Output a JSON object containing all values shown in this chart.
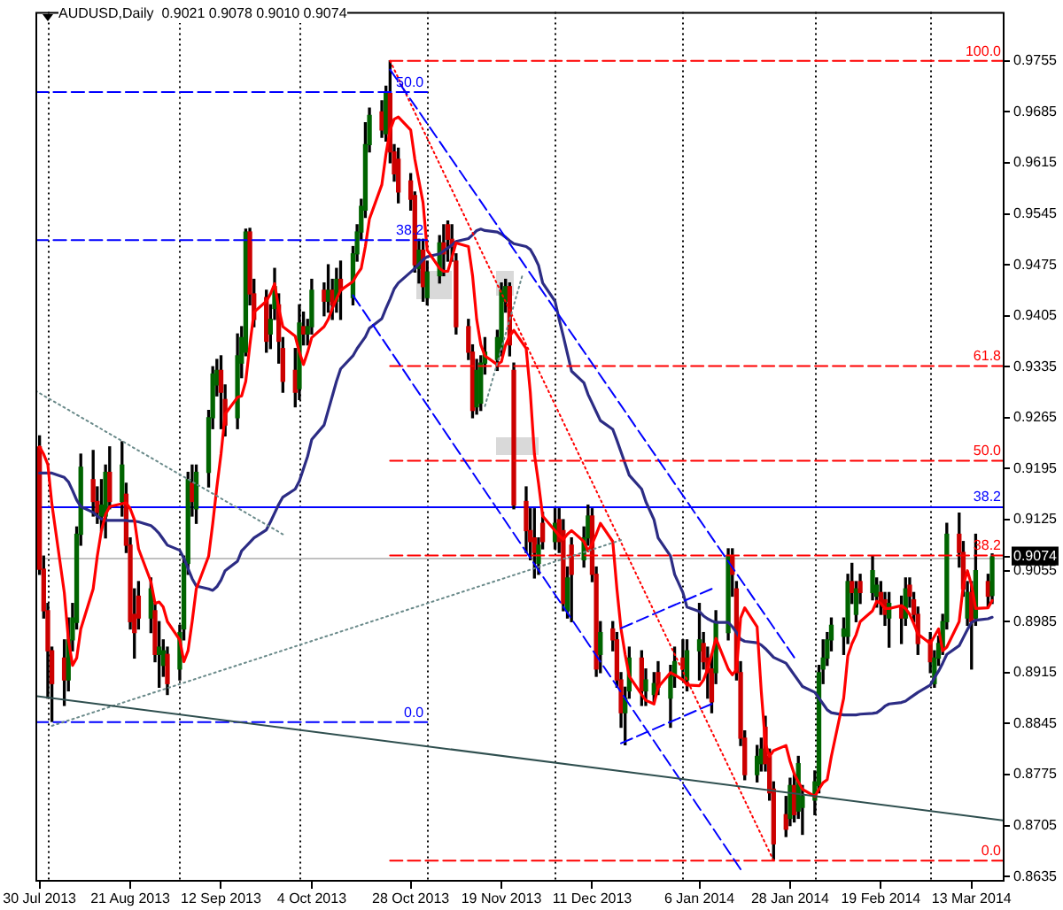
{
  "chart_data": {
    "type": "candlestick",
    "title": "AUDUSD,Daily  0.9021 0.9078 0.9010 0.9074",
    "x": [
      "2013-07-30",
      "2013-07-31",
      "2013-08-01",
      "2013-08-02",
      "2013-08-05",
      "2013-08-06",
      "2013-08-07",
      "2013-08-08",
      "2013-08-09",
      "2013-08-12",
      "2013-08-13",
      "2013-08-14",
      "2013-08-15",
      "2013-08-16",
      "2013-08-19",
      "2013-08-20",
      "2013-08-21",
      "2013-08-22",
      "2013-08-23",
      "2013-08-26",
      "2013-08-27",
      "2013-08-28",
      "2013-08-29",
      "2013-08-30",
      "2013-09-02",
      "2013-09-03",
      "2013-09-04",
      "2013-09-05",
      "2013-09-06",
      "2013-09-09",
      "2013-09-10",
      "2013-09-11",
      "2013-09-12",
      "2013-09-13",
      "2013-09-16",
      "2013-09-17",
      "2013-09-18",
      "2013-09-19",
      "2013-09-20",
      "2013-09-23",
      "2013-09-24",
      "2013-09-25",
      "2013-09-26",
      "2013-09-27",
      "2013-09-30",
      "2013-10-01",
      "2013-10-02",
      "2013-10-03",
      "2013-10-04",
      "2013-10-07",
      "2013-10-08",
      "2013-10-09",
      "2013-10-10",
      "2013-10-11",
      "2013-10-14",
      "2013-10-15",
      "2013-10-16",
      "2013-10-17",
      "2013-10-18",
      "2013-10-21",
      "2013-10-22",
      "2013-10-23",
      "2013-10-24",
      "2013-10-25",
      "2013-10-28",
      "2013-10-29",
      "2013-10-30",
      "2013-10-31",
      "2013-11-01",
      "2013-11-04",
      "2013-11-05",
      "2013-11-06",
      "2013-11-07",
      "2013-11-08",
      "2013-11-11",
      "2013-11-12",
      "2013-11-13",
      "2013-11-14",
      "2013-11-15",
      "2013-11-18",
      "2013-11-19",
      "2013-11-20",
      "2013-11-21",
      "2013-11-22",
      "2013-11-25",
      "2013-11-26",
      "2013-11-27",
      "2013-11-28",
      "2013-11-29",
      "2013-12-02",
      "2013-12-03",
      "2013-12-04",
      "2013-12-05",
      "2013-12-06",
      "2013-12-09",
      "2013-12-10",
      "2013-12-11",
      "2013-12-12",
      "2013-12-13",
      "2013-12-16",
      "2013-12-17",
      "2013-12-18",
      "2013-12-19",
      "2013-12-20",
      "2013-12-23",
      "2013-12-24",
      "2013-12-26",
      "2013-12-27",
      "2013-12-30",
      "2013-12-31",
      "2014-01-02",
      "2014-01-03",
      "2014-01-06",
      "2014-01-07",
      "2014-01-08",
      "2014-01-09",
      "2014-01-10",
      "2014-01-13",
      "2014-01-14",
      "2014-01-15",
      "2014-01-16",
      "2014-01-17",
      "2014-01-20",
      "2014-01-21",
      "2014-01-22",
      "2014-01-23",
      "2014-01-24",
      "2014-01-27",
      "2014-01-28",
      "2014-01-29",
      "2014-01-30",
      "2014-01-31",
      "2014-02-03",
      "2014-02-04",
      "2014-02-05",
      "2014-02-06",
      "2014-02-07",
      "2014-02-10",
      "2014-02-11",
      "2014-02-12",
      "2014-02-13",
      "2014-02-14",
      "2014-02-17",
      "2014-02-18",
      "2014-02-19",
      "2014-02-20",
      "2014-02-21",
      "2014-02-24",
      "2014-02-25",
      "2014-02-26",
      "2014-02-27",
      "2014-02-28",
      "2014-03-03",
      "2014-03-04",
      "2014-03-05",
      "2014-03-06",
      "2014-03-07",
      "2014-03-10",
      "2014-03-11",
      "2014-03-12",
      "2014-03-13",
      "2014-03-14",
      "2014-03-17",
      "2014-03-18"
    ],
    "ohlc": [
      [
        0.9225,
        0.924,
        0.905,
        0.9057
      ],
      [
        0.9057,
        0.9075,
        0.899,
        0.9
      ],
      [
        0.9,
        0.901,
        0.888,
        0.8945
      ],
      [
        0.8945,
        0.895,
        0.8848,
        0.89
      ],
      [
        0.8935,
        0.896,
        0.887,
        0.8905
      ],
      [
        0.8905,
        0.899,
        0.889,
        0.896
      ],
      [
        0.896,
        0.901,
        0.8945,
        0.899
      ],
      [
        0.8984,
        0.9115,
        0.8975,
        0.9105
      ],
      [
        0.9105,
        0.9215,
        0.909,
        0.9197
      ],
      [
        0.918,
        0.922,
        0.913,
        0.915
      ],
      [
        0.915,
        0.917,
        0.912,
        0.9135
      ],
      [
        0.913,
        0.918,
        0.911,
        0.9145
      ],
      [
        0.913,
        0.92,
        0.91,
        0.919
      ],
      [
        0.919,
        0.9225,
        0.914,
        0.915
      ],
      [
        0.915,
        0.9232,
        0.913,
        0.92
      ],
      [
        0.916,
        0.9175,
        0.908,
        0.909
      ],
      [
        0.909,
        0.91,
        0.8975,
        0.8985
      ],
      [
        0.8995,
        0.903,
        0.8935,
        0.897
      ],
      [
        0.902,
        0.904,
        0.8975,
        0.899
      ],
      [
        0.899,
        0.9045,
        0.897,
        0.903
      ],
      [
        0.9,
        0.901,
        0.893,
        0.894
      ],
      [
        0.894,
        0.8985,
        0.8895,
        0.895
      ],
      [
        0.8925,
        0.896,
        0.891,
        0.8945
      ],
      [
        0.894,
        0.895,
        0.8885,
        0.89
      ],
      [
        0.892,
        0.898,
        0.8905,
        0.897
      ],
      [
        0.8975,
        0.9075,
        0.896,
        0.9065
      ],
      [
        0.9065,
        0.919,
        0.905,
        0.918
      ],
      [
        0.9175,
        0.92,
        0.913,
        0.915
      ],
      [
        0.914,
        0.92,
        0.912,
        0.919
      ],
      [
        0.919,
        0.9275,
        0.917,
        0.9265
      ],
      [
        0.9265,
        0.9335,
        0.925,
        0.9325
      ],
      [
        0.931,
        0.9345,
        0.9295,
        0.933
      ],
      [
        0.933,
        0.935,
        0.925,
        0.93
      ],
      [
        0.929,
        0.931,
        0.924,
        0.9255
      ],
      [
        0.9265,
        0.938,
        0.925,
        0.935
      ],
      [
        0.934,
        0.939,
        0.932,
        0.9375
      ],
      [
        0.9355,
        0.9524,
        0.935,
        0.952
      ],
      [
        0.952,
        0.9525,
        0.942,
        0.9435
      ],
      [
        0.9435,
        0.9455,
        0.939,
        0.94
      ],
      [
        0.943,
        0.944,
        0.9355,
        0.937
      ],
      [
        0.938,
        0.942,
        0.936,
        0.94
      ],
      [
        0.9415,
        0.947,
        0.94,
        0.9445
      ],
      [
        0.942,
        0.9435,
        0.934,
        0.937
      ],
      [
        0.936,
        0.9375,
        0.93,
        0.9315
      ],
      [
        0.933,
        0.936,
        0.928,
        0.93
      ],
      [
        0.9305,
        0.942,
        0.929,
        0.9395
      ],
      [
        0.939,
        0.941,
        0.9365,
        0.938
      ],
      [
        0.938,
        0.94,
        0.9365,
        0.939
      ],
      [
        0.939,
        0.9455,
        0.938,
        0.944
      ],
      [
        0.944,
        0.945,
        0.9405,
        0.9425
      ],
      [
        0.9425,
        0.9475,
        0.941,
        0.944
      ],
      [
        0.944,
        0.9455,
        0.94,
        0.942
      ],
      [
        0.9425,
        0.947,
        0.941,
        0.9455
      ],
      [
        0.9455,
        0.948,
        0.94,
        0.944
      ],
      [
        0.943,
        0.95,
        0.942,
        0.949
      ],
      [
        0.949,
        0.953,
        0.948,
        0.952
      ],
      [
        0.952,
        0.9565,
        0.951,
        0.9555
      ],
      [
        0.955,
        0.967,
        0.954,
        0.964
      ],
      [
        0.964,
        0.969,
        0.963,
        0.968
      ],
      [
        0.9685,
        0.97,
        0.965,
        0.966
      ],
      [
        0.9655,
        0.972,
        0.9645,
        0.971
      ],
      [
        0.971,
        0.9755,
        0.9615,
        0.963
      ],
      [
        0.963,
        0.964,
        0.959,
        0.96
      ],
      [
        0.962,
        0.9635,
        0.956,
        0.9575
      ],
      [
        0.959,
        0.96,
        0.955,
        0.9565
      ],
      [
        0.957,
        0.9575,
        0.9465,
        0.9475
      ],
      [
        0.947,
        0.951,
        0.945,
        0.9495
      ],
      [
        0.9495,
        0.951,
        0.9425,
        0.9445
      ],
      [
        0.943,
        0.948,
        0.942,
        0.9465
      ],
      [
        0.946,
        0.9515,
        0.945,
        0.9505
      ],
      [
        0.9505,
        0.953,
        0.946,
        0.949
      ],
      [
        0.953,
        0.9535,
        0.948,
        0.951
      ],
      [
        0.951,
        0.953,
        0.948,
        0.95
      ],
      [
        0.948,
        0.949,
        0.938,
        0.939
      ],
      [
        0.939,
        0.94,
        0.9345,
        0.9355
      ],
      [
        0.9355,
        0.9365,
        0.9265,
        0.9275
      ],
      [
        0.928,
        0.9345,
        0.927,
        0.933
      ],
      [
        0.9285,
        0.935,
        0.9275,
        0.934
      ],
      [
        0.934,
        0.9375,
        0.9325,
        0.9355
      ],
      [
        0.9345,
        0.9385,
        0.933,
        0.9375
      ],
      [
        0.936,
        0.945,
        0.935,
        0.944
      ],
      [
        0.9425,
        0.9455,
        0.941,
        0.9445
      ],
      [
        0.9445,
        0.945,
        0.935,
        0.9365
      ],
      [
        0.933,
        0.934,
        0.914,
        0.9145
      ],
      [
        0.915,
        0.917,
        0.908,
        0.911
      ],
      [
        0.911,
        0.914,
        0.907,
        0.9095
      ],
      [
        0.91,
        0.914,
        0.9045,
        0.908
      ],
      [
        0.9065,
        0.91,
        0.905,
        0.909
      ],
      [
        0.912,
        0.9135,
        0.9085,
        0.9095
      ],
      [
        0.9095,
        0.914,
        0.9085,
        0.912
      ],
      [
        0.9125,
        0.914,
        0.908,
        0.9095
      ],
      [
        0.911,
        0.9125,
        0.9,
        0.901
      ],
      [
        0.9,
        0.906,
        0.899,
        0.9045
      ],
      [
        0.909,
        0.91,
        0.8985,
        0.905
      ],
      [
        0.907,
        0.9115,
        0.906,
        0.91
      ],
      [
        0.91,
        0.9145,
        0.909,
        0.913
      ],
      [
        0.913,
        0.914,
        0.904,
        0.905
      ],
      [
        0.905,
        0.906,
        0.891,
        0.892
      ],
      [
        0.894,
        0.8985,
        0.8915,
        0.897
      ],
      [
        0.8975,
        0.8985,
        0.8945,
        0.896
      ],
      [
        0.896,
        0.897,
        0.8895,
        0.8905
      ],
      [
        0.8905,
        0.8915,
        0.884,
        0.886
      ],
      [
        0.886,
        0.8895,
        0.8816,
        0.888
      ],
      [
        0.889,
        0.895,
        0.888,
        0.8935
      ],
      [
        0.8935,
        0.8945,
        0.887,
        0.889
      ],
      [
        0.889,
        0.892,
        0.887,
        0.8905
      ],
      [
        0.8885,
        0.8915,
        0.8875,
        0.89
      ],
      [
        0.8915,
        0.893,
        0.8885,
        0.8895
      ],
      [
        0.888,
        0.8925,
        0.884,
        0.891
      ],
      [
        0.891,
        0.895,
        0.8895,
        0.893
      ],
      [
        0.8935,
        0.896,
        0.8905,
        0.892
      ],
      [
        0.8905,
        0.896,
        0.889,
        0.8945
      ],
      [
        0.8945,
        0.901,
        0.8905,
        0.896
      ],
      [
        0.8955,
        0.897,
        0.892,
        0.893
      ],
      [
        0.8935,
        0.895,
        0.888,
        0.8915
      ],
      [
        0.892,
        0.894,
        0.886,
        0.8875
      ],
      [
        0.8915,
        0.9,
        0.89,
        0.8985
      ],
      [
        0.897,
        0.9085,
        0.896,
        0.9075
      ],
      [
        0.9075,
        0.9085,
        0.902,
        0.905
      ],
      [
        0.903,
        0.904,
        0.8905,
        0.8915
      ],
      [
        0.8915,
        0.893,
        0.8815,
        0.8825
      ],
      [
        0.8825,
        0.8835,
        0.8768,
        0.8775
      ],
      [
        0.8775,
        0.8815,
        0.8765,
        0.88
      ],
      [
        0.879,
        0.8825,
        0.878,
        0.881
      ],
      [
        0.884,
        0.8855,
        0.878,
        0.879
      ],
      [
        0.88,
        0.881,
        0.874,
        0.875
      ],
      [
        0.8755,
        0.8765,
        0.8659,
        0.868
      ],
      [
        0.872,
        0.8745,
        0.869,
        0.87
      ],
      [
        0.8715,
        0.877,
        0.8705,
        0.876
      ],
      [
        0.876,
        0.8775,
        0.871,
        0.872
      ],
      [
        0.8725,
        0.88,
        0.8715,
        0.879
      ],
      [
        0.873,
        0.876,
        0.8693,
        0.8745
      ],
      [
        0.874,
        0.878,
        0.872,
        0.8765
      ],
      [
        0.876,
        0.8925,
        0.875,
        0.8915
      ],
      [
        0.892,
        0.896,
        0.89,
        0.8935
      ],
      [
        0.8935,
        0.897,
        0.8925,
        0.896
      ],
      [
        0.896,
        0.899,
        0.8945,
        0.898
      ],
      [
        0.8965,
        0.899,
        0.894,
        0.8975
      ],
      [
        0.8965,
        0.905,
        0.8955,
        0.904
      ],
      [
        0.904,
        0.9065,
        0.901,
        0.9025
      ],
      [
        0.8995,
        0.904,
        0.8985,
        0.903
      ],
      [
        0.904,
        0.905,
        0.901,
        0.9025
      ],
      [
        0.9025,
        0.9075,
        0.9015,
        0.9055
      ],
      [
        0.902,
        0.9045,
        0.9005,
        0.9035
      ],
      [
        0.9025,
        0.904,
        0.8995,
        0.901
      ],
      [
        0.9015,
        0.9025,
        0.898,
        0.8995
      ],
      [
        0.899,
        0.9025,
        0.895,
        0.901
      ],
      [
        0.9005,
        0.902,
        0.8955,
        0.899
      ],
      [
        0.899,
        0.9045,
        0.898,
        0.903
      ],
      [
        0.9035,
        0.9045,
        0.9005,
        0.902
      ],
      [
        0.9015,
        0.9025,
        0.8985,
        0.8995
      ],
      [
        0.8995,
        0.9005,
        0.894,
        0.8955
      ],
      [
        0.896,
        0.897,
        0.8915,
        0.893
      ],
      [
        0.89,
        0.8945,
        0.8895,
        0.8935
      ],
      [
        0.8935,
        0.8965,
        0.8925,
        0.8955
      ],
      [
        0.895,
        0.8995,
        0.894,
        0.8985
      ],
      [
        0.8985,
        0.912,
        0.8975,
        0.9105
      ],
      [
        0.9105,
        0.9134,
        0.906,
        0.908
      ],
      [
        0.908,
        0.9095,
        0.902,
        0.903
      ],
      [
        0.899,
        0.904,
        0.898,
        0.9025
      ],
      [
        0.9025,
        0.904,
        0.892,
        0.8985
      ],
      [
        0.899,
        0.9105,
        0.898,
        0.9055
      ],
      [
        0.904,
        0.905,
        0.9005,
        0.902
      ],
      [
        0.9021,
        0.9078,
        0.901,
        0.9074
      ]
    ],
    "colors": [
      "#cc0000",
      "#cc0000",
      "#cc0000",
      "#cc0000",
      "#cc0000",
      "#006400",
      "#006400",
      "#006400",
      "#006400",
      "#cc0000",
      "#cc0000",
      "#006400",
      "#006400",
      "#cc0000",
      "#006400",
      "#cc0000",
      "#cc0000",
      "#cc0000",
      "#cc0000",
      "#006400",
      "#cc0000",
      "#006400",
      "#006400",
      "#cc0000",
      "#006400",
      "#006400",
      "#006400",
      "#cc0000",
      "#006400",
      "#006400",
      "#006400",
      "#006400",
      "#cc0000",
      "#cc0000",
      "#006400",
      "#006400",
      "#006400",
      "#cc0000",
      "#cc0000",
      "#cc0000",
      "#006400",
      "#006400",
      "#cc0000",
      "#cc0000",
      "#cc0000",
      "#006400",
      "#cc0000",
      "#006400",
      "#006400",
      "#cc0000",
      "#006400",
      "#cc0000",
      "#006400",
      "#cc0000",
      "#006400",
      "#006400",
      "#006400",
      "#006400",
      "#006400",
      "#cc0000",
      "#006400",
      "#cc0000",
      "#cc0000",
      "#cc0000",
      "#cc0000",
      "#cc0000",
      "#006400",
      "#cc0000",
      "#006400",
      "#006400",
      "#cc0000",
      "#cc0000",
      "#cc0000",
      "#cc0000",
      "#cc0000",
      "#cc0000",
      "#006400",
      "#006400",
      "#006400",
      "#006400",
      "#006400",
      "#006400",
      "#cc0000",
      "#cc0000",
      "#cc0000",
      "#cc0000",
      "#cc0000",
      "#006400",
      "#cc0000",
      "#006400",
      "#cc0000",
      "#cc0000",
      "#006400",
      "#cc0000",
      "#006400",
      "#006400",
      "#cc0000",
      "#cc0000",
      "#006400",
      "#cc0000",
      "#cc0000",
      "#cc0000",
      "#006400",
      "#006400",
      "#cc0000",
      "#006400",
      "#006400",
      "#cc0000",
      "#006400",
      "#006400",
      "#cc0000",
      "#006400",
      "#006400",
      "#cc0000",
      "#cc0000",
      "#cc0000",
      "#006400",
      "#006400",
      "#cc0000",
      "#cc0000",
      "#cc0000",
      "#cc0000",
      "#006400",
      "#006400",
      "#cc0000",
      "#cc0000",
      "#cc0000",
      "#cc0000",
      "#006400",
      "#cc0000",
      "#006400",
      "#006400",
      "#006400",
      "#006400",
      "#006400",
      "#006400",
      "#006400",
      "#006400",
      "#006400",
      "#cc0000",
      "#006400",
      "#cc0000",
      "#006400",
      "#006400",
      "#cc0000",
      "#cc0000",
      "#006400",
      "#cc0000",
      "#006400",
      "#cc0000",
      "#cc0000",
      "#cc0000",
      "#cc0000",
      "#006400",
      "#006400",
      "#006400",
      "#006400",
      "#cc0000",
      "#cc0000",
      "#006400",
      "#cc0000",
      "#006400",
      "#cc0000",
      "#006400"
    ],
    "series": [
      {
        "type": "line",
        "color": "#ff0000",
        "values": [
          0.9225,
          0.9215,
          0.9201,
          0.9146,
          0.9025,
          0.896,
          0.8925,
          0.8935,
          0.8975,
          0.903,
          0.9075,
          0.911,
          0.9132,
          0.9143,
          0.9147,
          0.9148,
          0.914,
          0.9125,
          0.9085,
          0.904,
          0.901,
          0.9012,
          0.9005,
          0.8985,
          0.896,
          0.893,
          0.8945,
          0.8985,
          0.903,
          0.9075,
          0.912,
          0.917,
          0.9215,
          0.927,
          0.9293,
          0.9295,
          0.9315,
          0.9365,
          0.941,
          0.9425,
          0.9435,
          0.9449,
          0.9415,
          0.939,
          0.9377,
          0.9355,
          0.9338,
          0.9355,
          0.9375,
          0.939,
          0.94,
          0.9415,
          0.9428,
          0.944,
          0.9452,
          0.9462,
          0.947,
          0.95,
          0.9538,
          0.9585,
          0.9627,
          0.966,
          0.9675,
          0.9678,
          0.966,
          0.962,
          0.959,
          0.956,
          0.9495,
          0.947,
          0.9466,
          0.9466,
          0.9485,
          0.9505,
          0.95,
          0.946,
          0.94,
          0.9365,
          0.935,
          0.9338,
          0.9342,
          0.9365,
          0.9377,
          0.9385,
          0.936,
          0.93,
          0.9215,
          0.9175,
          0.913,
          0.911,
          0.9103,
          0.9098,
          0.9105,
          0.911,
          0.9095,
          0.9082,
          0.9092,
          0.9105,
          0.912,
          0.9095,
          0.903,
          0.8975,
          0.894,
          0.891,
          0.8885,
          0.8877,
          0.8872,
          0.8895,
          0.8915,
          0.8912,
          0.8905,
          0.8898,
          0.8897,
          0.8905,
          0.892,
          0.894,
          0.8962,
          0.892,
          0.8912,
          0.8919,
          0.899,
          0.9004,
          0.8978,
          0.889,
          0.8818,
          0.88,
          0.8808,
          0.8815,
          0.8793,
          0.8776,
          0.8765,
          0.8755,
          0.8745,
          0.8755,
          0.8764,
          0.8768,
          0.88,
          0.888,
          0.8938,
          0.8955,
          0.8967,
          0.8985,
          0.9,
          0.9013,
          0.901,
          0.9003,
          0.9003,
          0.9007,
          0.9003,
          0.8995,
          0.8982,
          0.8968,
          0.8955,
          0.8965,
          0.8975,
          0.8945,
          0.895,
          0.8985,
          0.9035,
          0.9055,
          0.9035,
          0.9003,
          0.9004,
          0.9014
        ]
      },
      {
        "type": "line",
        "color": "#2c2c84",
        "values": [
          0.9189,
          0.9189,
          0.9189,
          0.9189,
          0.9183,
          0.9177,
          0.9165,
          0.9152,
          0.9143,
          0.9135,
          0.913,
          0.9126,
          0.9124,
          0.9124,
          0.9124,
          0.9124,
          0.9123,
          0.9123,
          0.9122,
          0.9117,
          0.9112,
          0.9106,
          0.9098,
          0.909,
          0.9083,
          0.9072,
          0.9058,
          0.9044,
          0.9034,
          0.903,
          0.9028,
          0.9033,
          0.9042,
          0.9055,
          0.9068,
          0.9082,
          0.9088,
          0.9094,
          0.91,
          0.9111,
          0.9122,
          0.9134,
          0.9146,
          0.9156,
          0.9167,
          0.9178,
          0.9195,
          0.9212,
          0.9235,
          0.9255,
          0.9275,
          0.9295,
          0.9315,
          0.9332,
          0.935,
          0.936,
          0.9368,
          0.9376,
          0.9388,
          0.9401,
          0.9415,
          0.9428,
          0.9442,
          0.945,
          0.9465,
          0.947,
          0.9476,
          0.9482,
          0.9486,
          0.949,
          0.9494,
          0.9498,
          0.9502,
          0.9507,
          0.9511,
          0.9516,
          0.9522,
          0.9524,
          0.9522,
          0.952,
          0.9517,
          0.9513,
          0.9508,
          0.9504,
          0.95,
          0.9496,
          0.9486,
          0.9474,
          0.945,
          0.9425,
          0.94,
          0.9377,
          0.9353,
          0.9329,
          0.9313,
          0.9297,
          0.9285,
          0.9273,
          0.9261,
          0.9249,
          0.9234,
          0.9218,
          0.9202,
          0.9186,
          0.9167,
          0.915,
          0.9125,
          0.91,
          0.9075,
          0.905,
          0.9025,
          0.9005,
          0.8999,
          0.8993,
          0.8989,
          0.8986,
          0.8984,
          0.8984,
          0.8978,
          0.897,
          0.8961,
          0.8958,
          0.8956,
          0.8953,
          0.8948,
          0.8942,
          0.8936,
          0.8928,
          0.892,
          0.8912,
          0.8904,
          0.8896,
          0.8888,
          0.888,
          0.8872,
          0.8864,
          0.886,
          0.8857,
          0.8857,
          0.8857,
          0.8857,
          0.8858,
          0.8859,
          0.886,
          0.8864,
          0.8869,
          0.8872,
          0.8874,
          0.8876,
          0.888,
          0.8884,
          0.8888,
          0.8898,
          0.8908,
          0.8917,
          0.8928,
          0.894,
          0.8952,
          0.8963,
          0.8974,
          0.8984,
          0.8987,
          0.8989,
          0.8991
        ]
      },
      {
        "type": "line",
        "color": "#2f4f4f",
        "x": [
          "2013-07-29",
          "2014-03-21"
        ],
        "values": [
          0.8883,
          0.8712
        ]
      },
      {
        "type": "line",
        "color": "#6a8a8a",
        "line_style": "dotted",
        "x": [
          "2013-07-29",
          "2013-09-27"
        ],
        "values": [
          0.9302,
          0.9105
        ]
      },
      {
        "type": "line",
        "color": "#6a8a8a",
        "line_style": "dotted",
        "x": [
          "2013-08-02",
          "2013-12-18"
        ],
        "values": [
          0.8842,
          0.9097
        ]
      },
      {
        "type": "line",
        "color": "#6a8a8a",
        "line_style": "dotted",
        "x": [
          "2013-11-15",
          "2013-11-24"
        ],
        "values": [
          0.9281,
          0.9459
        ]
      },
      {
        "type": "line",
        "color": "#0000ff",
        "line_style": "dashed",
        "x": [
          "2013-10-23",
          "2014-01-29"
        ],
        "values": [
          0.9743,
          0.8936
        ]
      },
      {
        "type": "line",
        "color": "#0000ff",
        "line_style": "dashed",
        "x": [
          "2013-10-14",
          "2014-01-16"
        ],
        "values": [
          0.9433,
          0.8645
        ]
      },
      {
        "type": "line",
        "color": "#ff0000",
        "line_style": "dotted",
        "x": [
          "2013-10-23",
          "2014-01-24"
        ],
        "values": [
          0.9755,
          0.8657
        ]
      },
      {
        "type": "line",
        "color": "#0000ff",
        "line_style": "dashed",
        "x": [
          "2013-12-18",
          "2014-01-09"
        ],
        "values": [
          0.8976,
          0.903
        ]
      },
      {
        "type": "line",
        "color": "#0000ff",
        "line_style": "dashed",
        "x": [
          "2013-12-18",
          "2014-01-09"
        ],
        "values": [
          0.8818,
          0.8872
        ]
      },
      {
        "type": "line",
        "color": "#0000ff",
        "line_style": "dashed",
        "x": [
          "2013-07-29",
          "2013-11-01"
        ],
        "values": [
          0.9712,
          0.9712
        ]
      },
      {
        "type": "line",
        "color": "#0000ff",
        "line_style": "dashed",
        "x": [
          "2013-07-29",
          "2013-11-01"
        ],
        "values": [
          0.9509,
          0.9509
        ]
      },
      {
        "type": "line",
        "color": "#0000ff",
        "line_style": "dashed",
        "x": [
          "2013-07-29",
          "2013-11-01"
        ],
        "values": [
          0.8847,
          0.8847
        ]
      },
      {
        "type": "line",
        "color": "#ff0000",
        "line_style": "dashed",
        "x": [
          "2013-10-23",
          "2014-03-21"
        ],
        "values": [
          0.9755,
          0.9755
        ]
      },
      {
        "type": "line",
        "color": "#ff0000",
        "line_style": "dashed",
        "x": [
          "2013-10-23",
          "2014-03-21"
        ],
        "values": [
          0.9336,
          0.9336
        ]
      },
      {
        "type": "line",
        "color": "#ff0000",
        "line_style": "dashed",
        "x": [
          "2013-10-23",
          "2014-03-21"
        ],
        "values": [
          0.9206,
          0.9206
        ]
      },
      {
        "type": "line",
        "color": "#ff0000",
        "line_style": "dashed",
        "x": [
          "2013-10-23",
          "2014-03-21"
        ],
        "values": [
          0.9076,
          0.9076
        ]
      },
      {
        "type": "line",
        "color": "#ff0000",
        "line_style": "dashed",
        "x": [
          "2013-10-23",
          "2014-03-21"
        ],
        "values": [
          0.8657,
          0.8657
        ]
      }
    ],
    "xlim": [
      "2013-07-29",
      "2014-03-21"
    ],
    "xticks": [
      {
        "value": "2013-07-30",
        "label": "30 Jul 2013"
      },
      {
        "value": "2013-08-21",
        "label": "21 Aug 2013"
      },
      {
        "value": "2013-09-12",
        "label": "12 Sep 2013"
      },
      {
        "value": "2013-10-04",
        "label": "4 Oct 2013"
      },
      {
        "value": "2013-10-28",
        "label": "28 Oct 2013"
      },
      {
        "value": "2013-11-19",
        "label": "19 Nov 2013"
      },
      {
        "value": "2013-12-11",
        "label": "11 Dec 2013"
      },
      {
        "value": "2014-01-06",
        "label": "6 Jan 2014"
      },
      {
        "value": "2014-01-28",
        "label": "28 Jan 2014"
      },
      {
        "value": "2014-02-19",
        "label": "19 Feb 2014"
      },
      {
        "value": "2014-03-13",
        "label": "13 Mar 2014"
      }
    ],
    "ylim": [
      0.8628,
      0.9822
    ],
    "yticks": [
      0.9755,
      0.9685,
      0.9615,
      0.9545,
      0.9475,
      0.9405,
      0.9335,
      0.9265,
      0.9195,
      0.9125,
      0.9055,
      0.8985,
      0.8915,
      0.8845,
      0.8775,
      0.8705,
      0.8635,
      0.9074
    ],
    "ref_lines": [
      {
        "axis": "x",
        "value": "2013-08-01",
        "color": "#000000",
        "line_style": "dotted"
      },
      {
        "axis": "x",
        "value": "2013-09-02",
        "color": "#000000",
        "line_style": "dotted"
      },
      {
        "axis": "x",
        "value": "2013-10-01",
        "color": "#000000",
        "line_style": "dotted"
      },
      {
        "axis": "x",
        "value": "2013-11-01",
        "color": "#000000",
        "line_style": "dotted"
      },
      {
        "axis": "x",
        "value": "2013-12-02",
        "color": "#000000",
        "line_style": "dotted"
      },
      {
        "axis": "x",
        "value": "2014-01-02",
        "color": "#000000",
        "line_style": "dotted"
      },
      {
        "axis": "x",
        "value": "2014-02-03",
        "color": "#000000",
        "line_style": "dotted"
      },
      {
        "axis": "x",
        "value": "2014-03-03",
        "color": "#000000",
        "line_style": "dotted"
      },
      {
        "axis": "y",
        "value": 0.9143,
        "color": "#0000ff"
      },
      {
        "axis": "y",
        "value": 0.9074,
        "color": "#c0c0c0"
      }
    ],
    "annotations": [
      {
        "text": "50.0",
        "x": "2013-11-01",
        "y": 0.9712
      },
      {
        "text": "38.2",
        "x": "2013-11-01",
        "y": 0.9509
      },
      {
        "text": "0.0",
        "x": "2013-11-01",
        "y": 0.8847
      },
      {
        "text": "100.0",
        "x": "2014-03-21",
        "y": 0.9755
      },
      {
        "text": "61.8",
        "x": "2014-03-21",
        "y": 0.9336
      },
      {
        "text": "50.0",
        "x": "2014-03-21",
        "y": 0.9206
      },
      {
        "text": "38.2",
        "x": "2014-03-21",
        "y": 0.9143
      },
      {
        "text": "38.2",
        "x": "2014-03-21",
        "y": 0.9076
      },
      {
        "text": "0.0",
        "x": "2014-03-21",
        "y": 0.8657
      }
    ]
  }
}
